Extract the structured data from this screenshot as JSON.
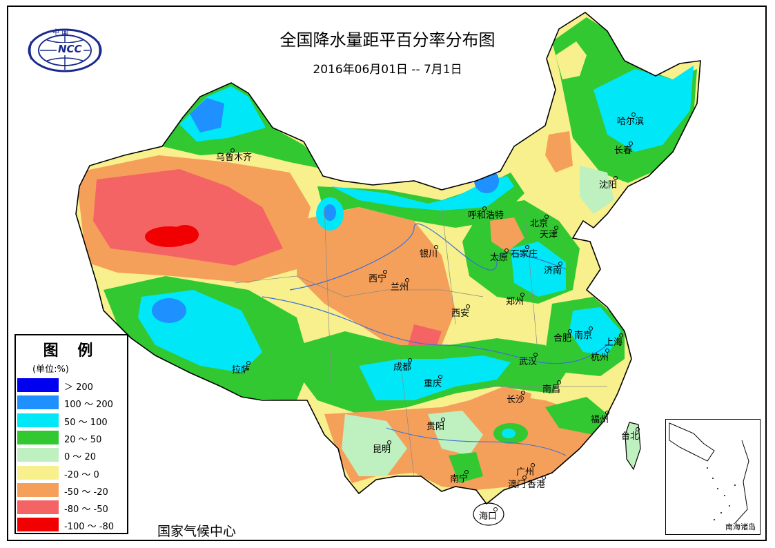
{
  "title": "全国降水量距平百分率分布图",
  "subtitle": "2016年06月01日 -- 7月1日",
  "logo": {
    "text": "NCC",
    "seal_text": "中 国"
  },
  "credit": "国家气候中心",
  "legend": {
    "title": "图 例",
    "unit": "(单位:%)",
    "items": [
      {
        "label": "＞ 200",
        "color": "#0000f0"
      },
      {
        "label": "100 ～ 200",
        "color": "#1e90ff"
      },
      {
        "label": "50 ～ 100",
        "color": "#00e8f8"
      },
      {
        "label": "20 ～ 50",
        "color": "#32c832"
      },
      {
        "label": "0 ～ 20",
        "color": "#bff0bf"
      },
      {
        "label": "-20 ～ 0",
        "color": "#f8f08c"
      },
      {
        "label": "-50 ～ -20",
        "color": "#f5a05a"
      },
      {
        "label": "-80 ～ -50",
        "color": "#f56464"
      },
      {
        "label": "-100 ～ -80",
        "color": "#f00000"
      }
    ]
  },
  "cities": [
    {
      "name": "乌鲁木齐"
    },
    {
      "name": "呼和浩特"
    },
    {
      "name": "北京"
    },
    {
      "name": "天津"
    },
    {
      "name": "石家庄"
    },
    {
      "name": "太原"
    },
    {
      "name": "银川"
    },
    {
      "name": "西宁"
    },
    {
      "name": "兰州"
    },
    {
      "name": "济南"
    },
    {
      "name": "郑州"
    },
    {
      "name": "西安"
    },
    {
      "name": "合肥"
    },
    {
      "name": "南京"
    },
    {
      "name": "上海"
    },
    {
      "name": "杭州"
    },
    {
      "name": "武汉"
    },
    {
      "name": "成都"
    },
    {
      "name": "重庆"
    },
    {
      "name": "拉萨"
    },
    {
      "name": "长沙"
    },
    {
      "name": "南昌"
    },
    {
      "name": "贵阳"
    },
    {
      "name": "昆明"
    },
    {
      "name": "福州"
    },
    {
      "name": "台北"
    },
    {
      "name": "南宁"
    },
    {
      "name": "广州"
    },
    {
      "name": "澳门"
    },
    {
      "name": "香港"
    },
    {
      "name": "海口"
    },
    {
      "name": "哈尔滨"
    },
    {
      "name": "长春"
    },
    {
      "name": "沈阳"
    }
  ],
  "inset_label": "南海诸岛"
}
